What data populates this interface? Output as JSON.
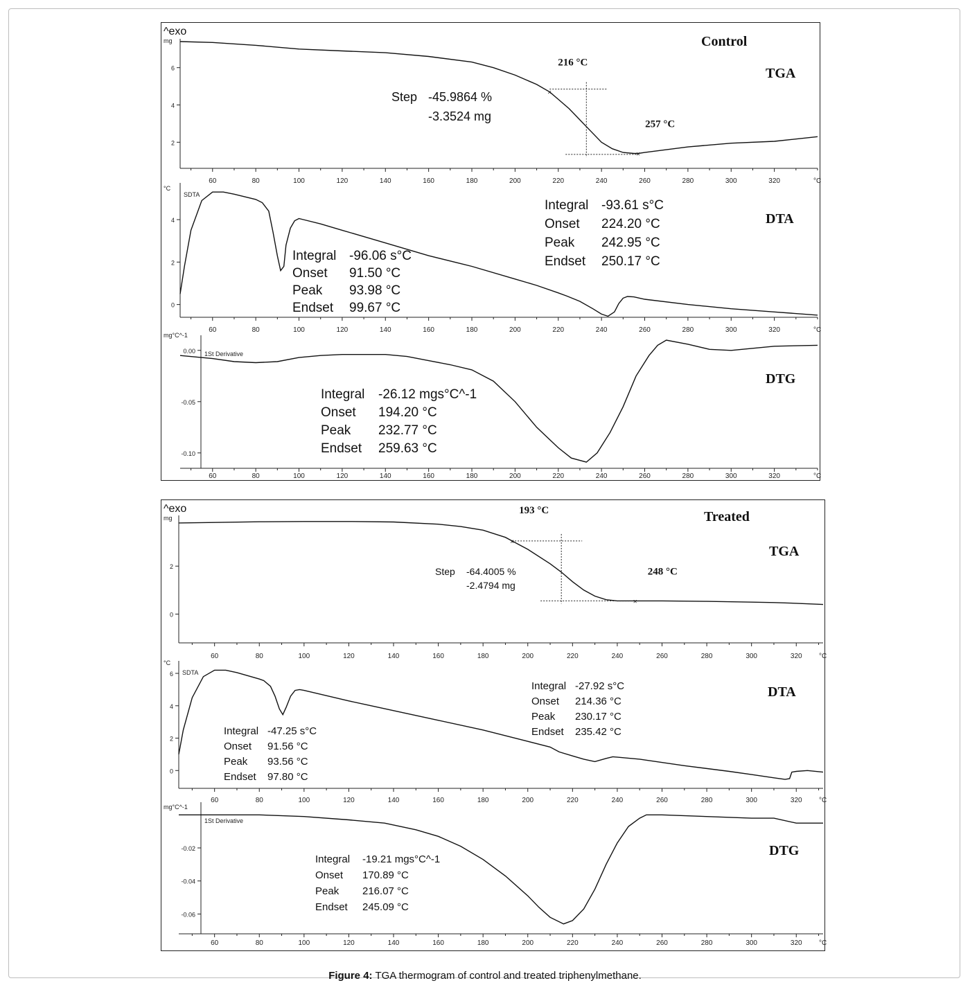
{
  "figure": {
    "caption_label": "Figure 4:",
    "caption_text": "TGA thermogram of control and treated triphenylmethane."
  },
  "chart_data": [
    {
      "panel": "Control",
      "title": "Control",
      "yunit_label": "^exo",
      "x_unit": "°C",
      "x_ticks": [
        60,
        80,
        100,
        120,
        140,
        160,
        180,
        200,
        220,
        240,
        260,
        280,
        300,
        320
      ],
      "xlim": [
        45,
        340
      ],
      "subplots": [
        {
          "type": "line",
          "label": "TGA",
          "y_unit": "mg",
          "ylim": [
            0.6,
            7.4
          ],
          "y_ticks": [
            2,
            4,
            6
          ],
          "x": [
            45,
            60,
            80,
            100,
            120,
            140,
            160,
            180,
            190,
            200,
            210,
            216,
            220,
            225,
            230,
            235,
            240,
            245,
            250,
            255,
            257,
            260,
            270,
            280,
            300,
            320,
            340
          ],
          "y": [
            7.4,
            7.35,
            7.2,
            7.0,
            6.9,
            6.8,
            6.6,
            6.3,
            6.0,
            5.6,
            5.1,
            4.7,
            4.3,
            3.8,
            3.2,
            2.6,
            2.0,
            1.65,
            1.45,
            1.4,
            1.4,
            1.45,
            1.6,
            1.75,
            1.95,
            2.05,
            2.3
          ],
          "markers": [
            {
              "x": 216,
              "label": "216 °C"
            },
            {
              "x": 257,
              "label": "257 °C"
            }
          ],
          "step": {
            "label": "Step",
            "percent": "-45.9864 %",
            "mg": "-3.3524 mg",
            "x": 233,
            "y_top": 4.85,
            "y_bottom": 1.35,
            "x_left": 216,
            "x_right": 257
          }
        },
        {
          "type": "line",
          "label": "DTA",
          "curve_label": "SDTA",
          "y_unit": "°C",
          "ylim": [
            -0.6,
            5.6
          ],
          "y_ticks": [
            0,
            2,
            4
          ],
          "x": [
            45,
            47,
            50,
            55,
            60,
            65,
            70,
            80,
            83,
            86,
            88,
            90,
            91.5,
            93,
            94,
            96,
            98,
            100,
            102,
            110,
            120,
            140,
            160,
            180,
            200,
            210,
            220,
            224,
            230,
            236,
            240,
            243,
            246,
            248,
            250,
            252,
            255,
            260,
            280,
            300,
            320,
            340
          ],
          "y": [
            0.5,
            1.8,
            3.5,
            4.9,
            5.3,
            5.3,
            5.2,
            4.95,
            4.8,
            4.4,
            3.4,
            2.3,
            1.6,
            1.8,
            2.8,
            3.6,
            3.95,
            4.05,
            4.0,
            3.8,
            3.5,
            2.9,
            2.3,
            1.8,
            1.2,
            0.9,
            0.55,
            0.4,
            0.15,
            -0.2,
            -0.45,
            -0.55,
            -0.35,
            0.05,
            0.3,
            0.38,
            0.36,
            0.25,
            0.0,
            -0.2,
            -0.35,
            -0.5
          ],
          "peaks": [
            {
              "integral": "-96.06 s°C",
              "onset": "91.50 °C",
              "peak": "93.98 °C",
              "endset": "99.67 °C"
            },
            {
              "integral": "-93.61 s°C",
              "onset": "224.20 °C",
              "peak": "242.95 °C",
              "endset": "250.17 °C"
            }
          ]
        },
        {
          "type": "line",
          "label": "DTG",
          "curve_label": "1St Derivative",
          "y_unit": "mg°C^-1",
          "ylim": [
            -0.115,
            0.012
          ],
          "y_ticks": [
            0.0,
            -0.05,
            -0.1
          ],
          "y_tick_labels": [
            "0.00",
            "-0.05",
            "-0.10"
          ],
          "x": [
            45,
            60,
            70,
            80,
            90,
            100,
            110,
            120,
            130,
            140,
            150,
            160,
            170,
            180,
            190,
            200,
            210,
            220,
            226,
            233,
            238,
            244,
            250,
            256,
            262,
            266,
            270,
            280,
            290,
            300,
            320,
            340
          ],
          "y": [
            -0.005,
            -0.008,
            -0.011,
            -0.012,
            -0.011,
            -0.007,
            -0.005,
            -0.004,
            -0.004,
            -0.004,
            -0.006,
            -0.01,
            -0.014,
            -0.019,
            -0.03,
            -0.05,
            -0.075,
            -0.095,
            -0.105,
            -0.109,
            -0.1,
            -0.08,
            -0.055,
            -0.025,
            -0.005,
            0.005,
            0.01,
            0.006,
            0.001,
            0.0,
            0.004,
            0.005
          ],
          "peak": {
            "integral": "-26.12 mgs°C^-1",
            "onset": "194.20 °C",
            "peak": "232.77 °C",
            "endset": "259.63 °C"
          }
        }
      ]
    },
    {
      "panel": "Treated",
      "title": "Treated",
      "yunit_label": "^exo",
      "x_unit": "°C",
      "x_ticks": [
        60,
        80,
        100,
        120,
        140,
        160,
        180,
        200,
        220,
        240,
        260,
        280,
        300,
        320
      ],
      "xlim": [
        44,
        332
      ],
      "subplots": [
        {
          "type": "line",
          "label": "TGA",
          "y_unit": "mg",
          "ylim": [
            -1.2,
            4.0
          ],
          "y_ticks": [
            0,
            2
          ],
          "x": [
            44,
            60,
            80,
            100,
            120,
            140,
            160,
            170,
            180,
            190,
            193,
            200,
            210,
            215,
            220,
            225,
            230,
            235,
            240,
            245,
            248,
            260,
            280,
            300,
            310,
            320,
            332
          ],
          "y": [
            3.8,
            3.82,
            3.85,
            3.86,
            3.86,
            3.84,
            3.75,
            3.65,
            3.5,
            3.2,
            3.05,
            2.7,
            2.1,
            1.75,
            1.35,
            1.0,
            0.75,
            0.6,
            0.55,
            0.55,
            0.55,
            0.55,
            0.53,
            0.5,
            0.48,
            0.45,
            0.4
          ],
          "markers": [
            {
              "x": 193,
              "label": "193 °C"
            },
            {
              "x": 248,
              "label": "248 °C"
            }
          ],
          "step": {
            "label": "Step",
            "percent": "-64.4005 %",
            "mg": "-2.4794 mg",
            "x": 215,
            "y_top": 3.05,
            "y_bottom": 0.55,
            "x_left": 193,
            "x_right": 248
          }
        },
        {
          "type": "line",
          "label": "DTA",
          "curve_label": "SDTA",
          "y_unit": "°C",
          "ylim": [
            -1.1,
            6.6
          ],
          "y_ticks": [
            0,
            2,
            4,
            6
          ],
          "x": [
            44,
            46,
            50,
            55,
            60,
            65,
            70,
            80,
            82,
            85,
            87,
            89,
            90.5,
            92,
            94,
            96,
            98,
            100,
            120,
            140,
            160,
            180,
            200,
            210,
            214,
            220,
            225,
            230,
            235,
            238,
            250,
            270,
            290,
            300,
            310,
            315,
            317,
            318,
            320,
            325,
            332
          ],
          "y": [
            1.0,
            2.5,
            4.5,
            5.8,
            6.2,
            6.2,
            6.05,
            5.65,
            5.55,
            5.2,
            4.6,
            3.8,
            3.45,
            3.9,
            4.6,
            4.95,
            5.0,
            4.95,
            4.3,
            3.7,
            3.1,
            2.5,
            1.8,
            1.45,
            1.15,
            0.9,
            0.7,
            0.55,
            0.75,
            0.85,
            0.7,
            0.3,
            -0.05,
            -0.25,
            -0.45,
            -0.55,
            -0.5,
            -0.1,
            -0.05,
            0.0,
            -0.1
          ],
          "peaks": [
            {
              "integral": "-47.25 s°C",
              "onset": "91.56 °C",
              "peak": "93.56 °C",
              "endset": "97.80 °C"
            },
            {
              "integral": "-27.92 s°C",
              "onset": "214.36 °C",
              "peak": "230.17 °C",
              "endset": "235.42 °C"
            }
          ]
        },
        {
          "type": "line",
          "label": "DTG",
          "curve_label": "1St Derivative",
          "y_unit": "mg°C^-1",
          "ylim": [
            -0.072,
            0.006
          ],
          "y_ticks": [
            -0.02,
            -0.04,
            -0.06
          ],
          "y_tick_labels": [
            "-0.02",
            "-0.04",
            "-0.06"
          ],
          "x": [
            44,
            60,
            80,
            100,
            120,
            136,
            150,
            160,
            170,
            180,
            190,
            200,
            205,
            210,
            216,
            220,
            225,
            230,
            235,
            240,
            245,
            250,
            253,
            260,
            280,
            300,
            310,
            320,
            332
          ],
          "y": [
            0.0,
            0.0,
            0.0,
            -0.001,
            -0.003,
            -0.005,
            -0.009,
            -0.013,
            -0.019,
            -0.027,
            -0.037,
            -0.049,
            -0.056,
            -0.062,
            -0.066,
            -0.064,
            -0.057,
            -0.045,
            -0.03,
            -0.017,
            -0.007,
            -0.002,
            0.0,
            0.0,
            -0.001,
            -0.002,
            -0.002,
            -0.005,
            -0.005
          ],
          "peak": {
            "integral": "-19.21 mgs°C^-1",
            "onset": "170.89 °C",
            "peak": "216.07 °C",
            "endset": "245.09 °C"
          }
        }
      ]
    }
  ]
}
